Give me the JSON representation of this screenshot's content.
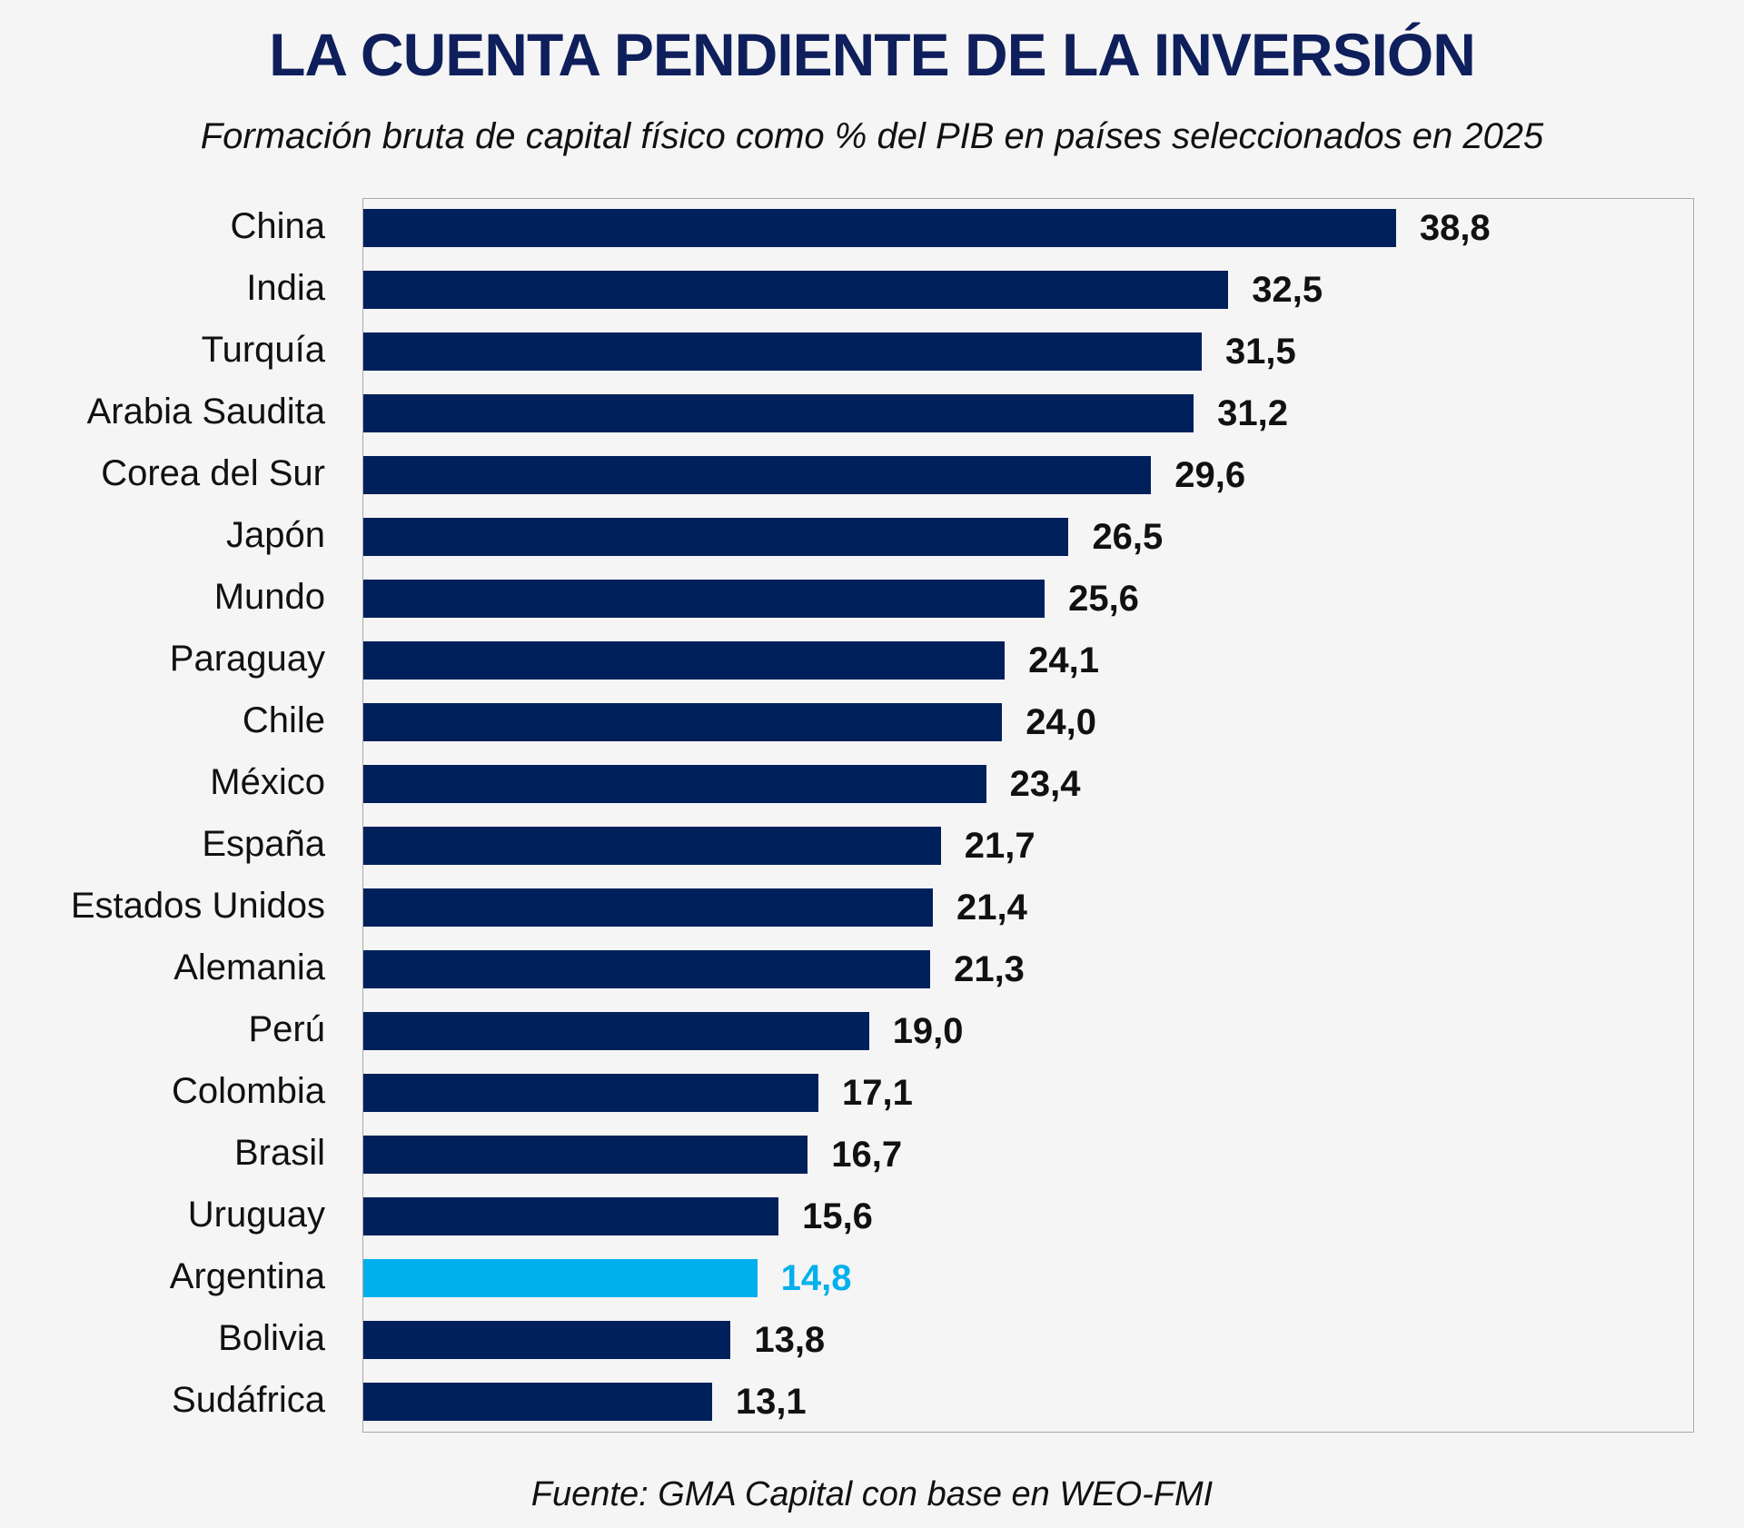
{
  "chart_data": {
    "type": "bar",
    "orientation": "horizontal",
    "title": "LA CUENTA PENDIENTE DE LA INVERSIÓN",
    "subtitle": "Formación bruta de capital físico como % del PIB en países seleccionados en 2025",
    "source": "Fuente: GMA Capital con base en WEO-FMI",
    "categories": [
      "China",
      "India",
      "Turquía",
      "Arabia Saudita",
      "Corea del Sur",
      "Japón",
      "Mundo",
      "Paraguay",
      "Chile",
      "México",
      "España",
      "Estados Unidos",
      "Alemania",
      "Perú",
      "Colombia",
      "Brasil",
      "Uruguay",
      "Argentina",
      "Bolivia",
      "Sudáfrica"
    ],
    "values": [
      38.8,
      32.5,
      31.5,
      31.2,
      29.6,
      26.5,
      25.6,
      24.1,
      24.0,
      23.4,
      21.7,
      21.4,
      21.3,
      19.0,
      17.1,
      16.7,
      15.6,
      14.8,
      13.8,
      13.1
    ],
    "value_labels": [
      "38,8",
      "32,5",
      "31,5",
      "31,2",
      "29,6",
      "26,5",
      "25,6",
      "24,1",
      "24,0",
      "23,4",
      "21,7",
      "21,4",
      "21,3",
      "19,0",
      "17,1",
      "16,7",
      "15,6",
      "14,8",
      "13,8",
      "13,1"
    ],
    "highlight": "Argentina",
    "colors": {
      "bar": "#00205b",
      "highlight": "#00b0ec",
      "title": "#0f1f5c",
      "label": "#111111"
    },
    "xlim": [
      0,
      50
    ],
    "grid": false,
    "legend": "none"
  }
}
